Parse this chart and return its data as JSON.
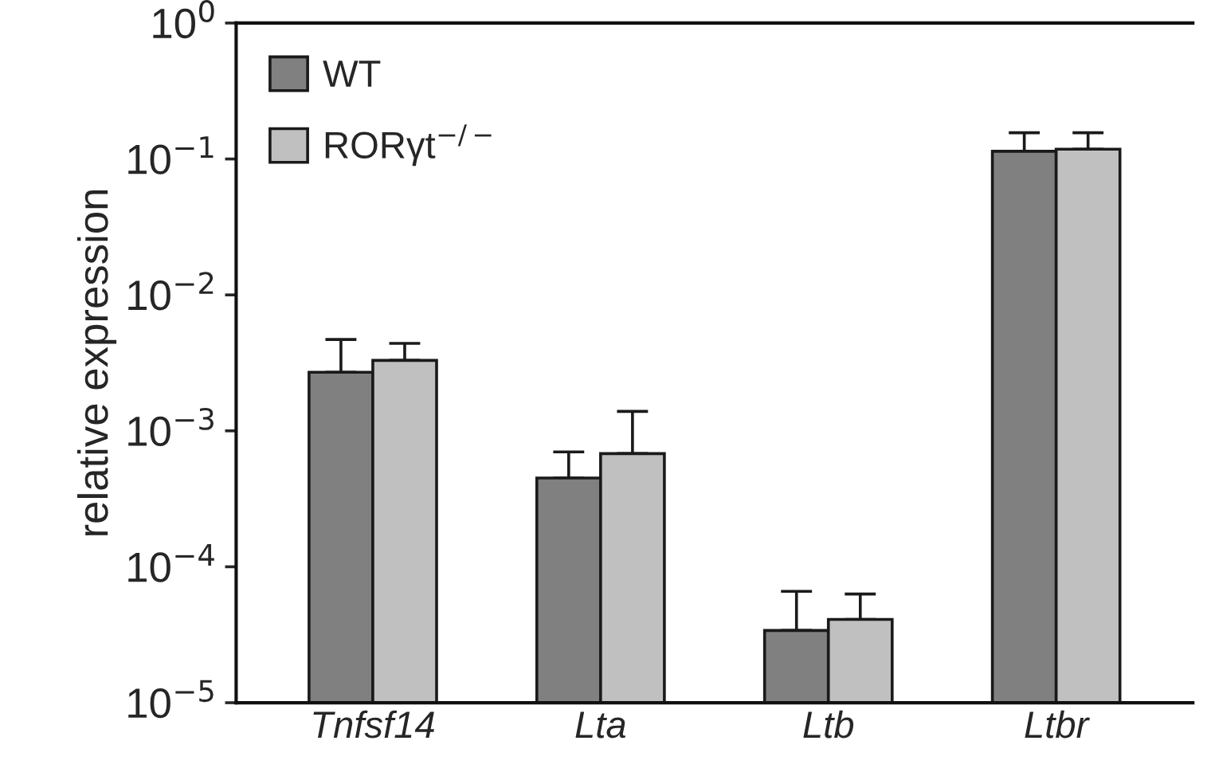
{
  "chart_data": {
    "type": "bar",
    "ylabel": "relative expression",
    "categories": [
      "Tnfsf14",
      "Lta",
      "Ltb",
      "Ltbr"
    ],
    "series": [
      {
        "name": "WT",
        "color": "#808080",
        "values": [
          0.0027,
          0.00045,
          3.4e-05,
          0.114
        ],
        "errors": [
          [
            0.0027,
            0.0047
          ],
          [
            0.00045,
            0.0007
          ],
          [
            3.4e-05,
            6.6e-05
          ],
          [
            0.114,
            0.156
          ]
        ]
      },
      {
        "name": "RORγt$^{−/−}$",
        "color": "#c0c0c0",
        "values": [
          0.0033,
          0.00068,
          4.1e-05,
          0.118
        ],
        "errors": [
          [
            0.0033,
            0.0044
          ],
          [
            0.00068,
            0.00139
          ],
          [
            4.1e-05,
            6.3e-05
          ],
          [
            0.118,
            0.156
          ]
        ]
      }
    ],
    "log": "y",
    "ylim": [
      1e-05,
      1
    ],
    "yticks": [
      {
        "value": 1e-05,
        "label": "10$^{−5}$"
      },
      {
        "value": 0.0001,
        "label": "10$^{−4}$"
      },
      {
        "value": 0.001,
        "label": "10$^{−3}$"
      },
      {
        "value": 0.01,
        "label": "10$^{−2}$"
      },
      {
        "value": 0.1,
        "label": "10$^{−1}$"
      },
      {
        "value": 1,
        "label": "10$^{0}$"
      }
    ],
    "grid": false,
    "legend": "top left"
  }
}
